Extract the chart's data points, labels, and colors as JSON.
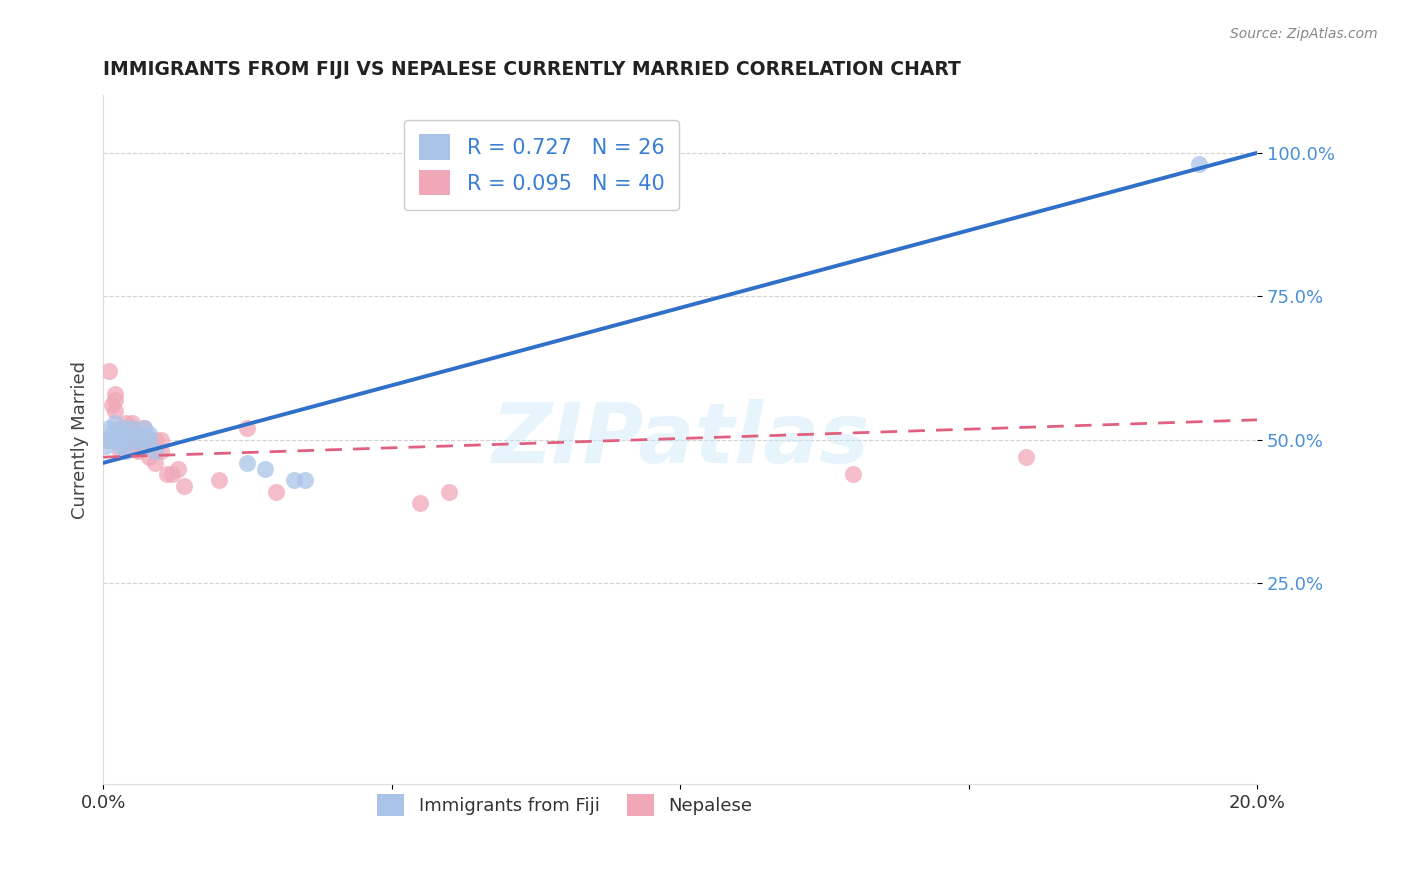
{
  "title": "IMMIGRANTS FROM FIJI VS NEPALESE CURRENTLY MARRIED CORRELATION CHART",
  "source": "Source: ZipAtlas.com",
  "ylabel": "Currently Married",
  "legend_labels": [
    "Immigrants from Fiji",
    "Nepalese"
  ],
  "R_fiji": 0.727,
  "N_fiji": 26,
  "R_nepal": 0.095,
  "N_nepal": 40,
  "xlim": [
    0.0,
    0.2
  ],
  "ylim": [
    -0.1,
    1.1
  ],
  "color_fiji": "#aac4e8",
  "color_nepal": "#f0a8b8",
  "line_color_fiji": "#3070c8",
  "line_color_nepal": "#e06080",
  "background_color": "#ffffff",
  "watermark": "ZIPatlas",
  "fiji_x": [
    0.0005,
    0.001,
    0.001,
    0.0015,
    0.002,
    0.002,
    0.0025,
    0.003,
    0.003,
    0.0035,
    0.004,
    0.004,
    0.005,
    0.005,
    0.006,
    0.006,
    0.007,
    0.007,
    0.008,
    0.008,
    0.009,
    0.025,
    0.028,
    0.033,
    0.035,
    0.19
  ],
  "fiji_y": [
    0.49,
    0.5,
    0.52,
    0.51,
    0.5,
    0.53,
    0.51,
    0.5,
    0.49,
    0.52,
    0.51,
    0.48,
    0.5,
    0.52,
    0.51,
    0.5,
    0.52,
    0.49,
    0.5,
    0.51,
    0.48,
    0.46,
    0.45,
    0.43,
    0.43,
    0.98
  ],
  "nepal_x": [
    0.0005,
    0.001,
    0.001,
    0.0015,
    0.002,
    0.002,
    0.002,
    0.003,
    0.003,
    0.003,
    0.003,
    0.004,
    0.004,
    0.004,
    0.005,
    0.005,
    0.005,
    0.005,
    0.006,
    0.006,
    0.007,
    0.007,
    0.007,
    0.008,
    0.008,
    0.009,
    0.009,
    0.01,
    0.01,
    0.011,
    0.012,
    0.013,
    0.014,
    0.02,
    0.025,
    0.03,
    0.055,
    0.06,
    0.13,
    0.16
  ],
  "nepal_y": [
    0.5,
    0.62,
    0.5,
    0.56,
    0.58,
    0.57,
    0.55,
    0.5,
    0.52,
    0.48,
    0.5,
    0.51,
    0.49,
    0.53,
    0.5,
    0.52,
    0.53,
    0.49,
    0.5,
    0.48,
    0.5,
    0.52,
    0.49,
    0.5,
    0.47,
    0.5,
    0.46,
    0.5,
    0.48,
    0.44,
    0.44,
    0.45,
    0.42,
    0.43,
    0.52,
    0.41,
    0.39,
    0.41,
    0.44,
    0.47
  ],
  "fiji_line_x": [
    0.0,
    0.2
  ],
  "fiji_line_y": [
    0.46,
    1.0
  ],
  "nepal_line_x": [
    0.0,
    0.2
  ],
  "nepal_line_y": [
    0.47,
    0.535
  ]
}
